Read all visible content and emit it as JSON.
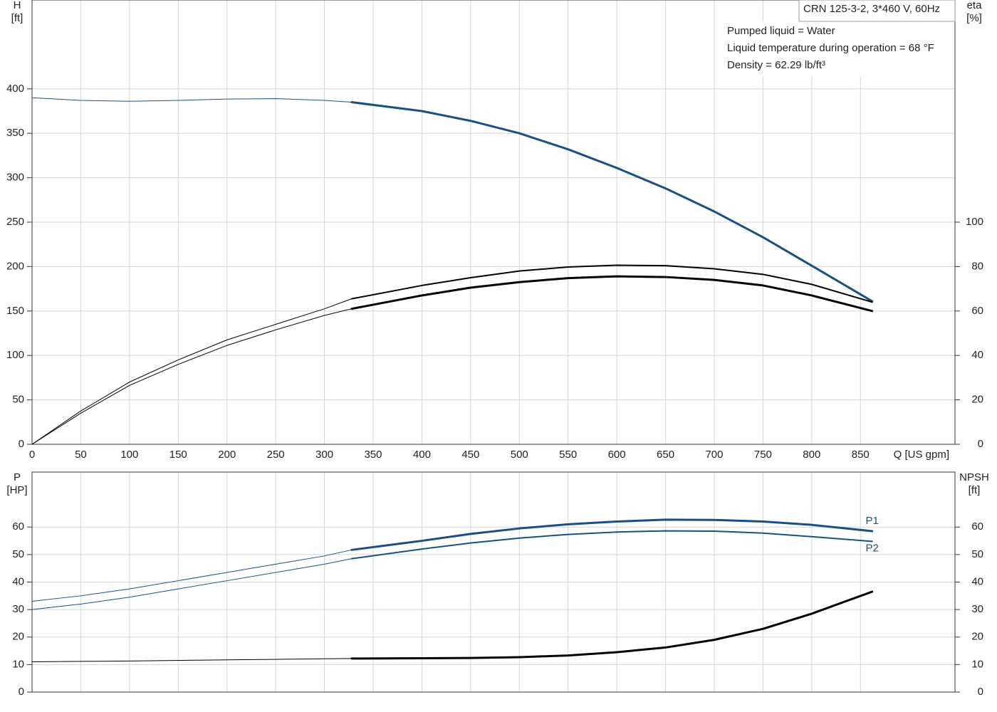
{
  "chart_data": [
    {
      "type": "line",
      "title": "CRN 125-3-2, 3*460 V, 60Hz",
      "annotations": [
        "Pumped liquid = Water",
        "Liquid temperature during operation = 68 °F",
        "Density = 62.29 lb/ft³"
      ],
      "ylabel": [
        "H",
        "[ft]"
      ],
      "y2label": [
        "eta",
        "[%]"
      ],
      "xlabel": "Q [US gpm]",
      "xlim": [
        0,
        947
      ],
      "xticks": [
        0,
        50,
        100,
        150,
        200,
        250,
        300,
        350,
        400,
        450,
        500,
        550,
        600,
        650,
        700,
        750,
        800,
        850
      ],
      "ylim": [
        0,
        500
      ],
      "yticks": [
        0,
        50,
        100,
        150,
        200,
        250,
        300,
        350,
        400
      ],
      "y2lim": [
        0,
        200
      ],
      "y2ticks": [
        0,
        20,
        40,
        60,
        80,
        100
      ],
      "grid": true,
      "series": [
        {
          "color": "#1a4f86",
          "line_width": 1,
          "x": [
            0,
            50,
            100,
            150,
            200,
            250,
            300,
            328
          ],
          "values": [
            390,
            387,
            386,
            387,
            388.5,
            389,
            387,
            385
          ]
        },
        {
          "color": "#1a4f86",
          "line_width": 3,
          "x": [
            328,
            400,
            450,
            500,
            550,
            600,
            650,
            700,
            750,
            800,
            862
          ],
          "values": [
            385,
            375,
            364,
            350,
            332,
            311,
            288,
            262,
            233,
            201,
            161
          ]
        },
        {
          "color": "#000000",
          "line_width": 1,
          "axis": "y2",
          "x": [
            0,
            50,
            100,
            150,
            200,
            250,
            300,
            328
          ],
          "values": [
            0,
            15,
            28,
            38,
            47,
            54,
            61,
            65.5
          ]
        },
        {
          "color": "#000000",
          "line_width": 2,
          "axis": "y2",
          "x": [
            328,
            400,
            450,
            500,
            550,
            600,
            650,
            700,
            750,
            800,
            862
          ],
          "values": [
            65.5,
            71.5,
            75,
            78,
            79.8,
            80.6,
            80.4,
            79,
            76.5,
            72,
            64
          ]
        },
        {
          "color": "#000000",
          "line_width": 1,
          "axis": "y2",
          "x": [
            0,
            50,
            100,
            150,
            200,
            250,
            300,
            328
          ],
          "values": [
            0,
            14,
            26.5,
            36,
            44.5,
            51.5,
            58,
            61
          ]
        },
        {
          "color": "#000000",
          "line_width": 3,
          "axis": "y2",
          "x": [
            328,
            400,
            450,
            500,
            550,
            600,
            650,
            700,
            750,
            800,
            862
          ],
          "values": [
            61,
            67,
            70.5,
            73,
            74.8,
            75.6,
            75.3,
            74,
            71.5,
            67,
            60
          ]
        }
      ]
    },
    {
      "type": "line",
      "ylabel": [
        "P",
        "[HP]"
      ],
      "y2label": [
        "NPSH",
        "[ft]"
      ],
      "xlim": [
        0,
        947
      ],
      "ylim": [
        0,
        80
      ],
      "yticks": [
        0,
        10,
        20,
        30,
        40,
        50,
        60
      ],
      "y2lim": [
        0,
        80
      ],
      "y2ticks": [
        0,
        10,
        20,
        30,
        40,
        50,
        60
      ],
      "grid": true,
      "series": [
        {
          "color": "#1a4f86",
          "line_width": 1,
          "x": [
            0,
            50,
            100,
            150,
            200,
            250,
            300,
            328
          ],
          "values": [
            33,
            35,
            37.5,
            40.5,
            43.5,
            46.5,
            49.5,
            51.7
          ]
        },
        {
          "name": "P1",
          "color": "#1a4f86",
          "line_width": 3,
          "x": [
            328,
            400,
            450,
            500,
            550,
            600,
            650,
            700,
            750,
            800,
            862
          ],
          "values": [
            51.7,
            55,
            57.5,
            59.5,
            61,
            62,
            62.7,
            62.6,
            62,
            60.8,
            58.5
          ]
        },
        {
          "color": "#1a4f86",
          "line_width": 1,
          "x": [
            0,
            50,
            100,
            150,
            200,
            250,
            300,
            328
          ],
          "values": [
            30,
            32,
            34.5,
            37.5,
            40.5,
            43.5,
            46.5,
            48.5
          ]
        },
        {
          "name": "P2",
          "color": "#1a4f86",
          "line_width": 2,
          "x": [
            328,
            400,
            450,
            500,
            550,
            600,
            650,
            700,
            750,
            800,
            862
          ],
          "values": [
            48.5,
            52,
            54.2,
            56,
            57.3,
            58.2,
            58.6,
            58.5,
            57.8,
            56.5,
            54.8
          ]
        },
        {
          "color": "#000000",
          "line_width": 1,
          "axis": "y2",
          "x": [
            0,
            100,
            200,
            300,
            328
          ],
          "values": [
            11,
            11.3,
            11.7,
            12.1,
            12.2
          ]
        },
        {
          "color": "#000000",
          "line_width": 3,
          "axis": "y2",
          "x": [
            328,
            400,
            450,
            500,
            550,
            600,
            650,
            700,
            750,
            800,
            862
          ],
          "values": [
            12.2,
            12.3,
            12.4,
            12.7,
            13.3,
            14.5,
            16.2,
            19,
            23,
            28.5,
            36.5
          ]
        }
      ]
    }
  ]
}
